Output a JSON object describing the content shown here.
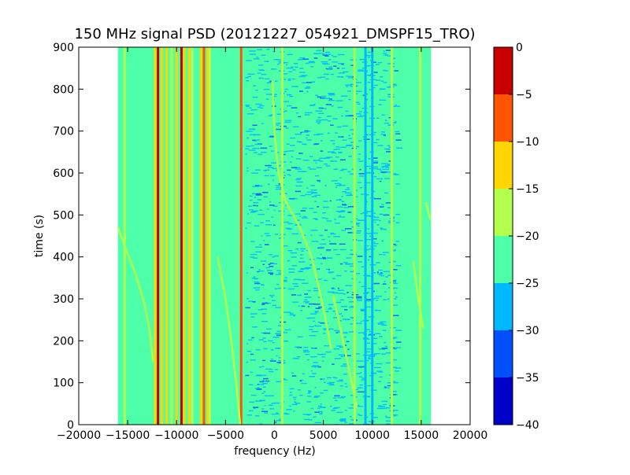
{
  "chart_data": {
    "type": "heatmap",
    "title": "150 MHz signal PSD (20121227_054921_DMSPF15_TRO)",
    "xlabel": "frequency (Hz)",
    "ylabel": "time (s)",
    "xlim": [
      -20000,
      20000
    ],
    "ylim": [
      0,
      900
    ],
    "data_extent_x": [
      -16000,
      16000
    ],
    "xticks": [
      -20000,
      -15000,
      -10000,
      -5000,
      0,
      5000,
      10000,
      15000,
      20000
    ],
    "xtick_labels": [
      "−20000",
      "−15000",
      "−10000",
      "−5000",
      "0",
      "5000",
      "10000",
      "15000",
      "20000"
    ],
    "yticks": [
      0,
      100,
      200,
      300,
      400,
      500,
      600,
      700,
      800,
      900
    ],
    "ytick_labels": [
      "0",
      "100",
      "200",
      "300",
      "400",
      "500",
      "600",
      "700",
      "800",
      "900"
    ],
    "colorbar": {
      "range": [
        -40,
        0
      ],
      "ticks": [
        0,
        -5,
        -10,
        -15,
        -20,
        -25,
        -30,
        -35,
        -40
      ],
      "tick_labels": [
        "0",
        "−5",
        "−10",
        "−15",
        "−20",
        "−25",
        "−30",
        "−35",
        "−40"
      ],
      "levels": [
        {
          "min": -40,
          "max": -35,
          "color": "#0000c8"
        },
        {
          "min": -35,
          "max": -30,
          "color": "#0050ff"
        },
        {
          "min": -30,
          "max": -25,
          "color": "#00b8ff"
        },
        {
          "min": -25,
          "max": -20,
          "color": "#4dffa8"
        },
        {
          "min": -20,
          "max": -15,
          "color": "#b2ff4d"
        },
        {
          "min": -15,
          "max": -10,
          "color": "#ffd500"
        },
        {
          "min": -10,
          "max": -5,
          "color": "#ff5500"
        },
        {
          "min": -5,
          "max": 0,
          "color": "#c80000"
        }
      ]
    },
    "background_level": -22,
    "vertical_lines": [
      {
        "x": -15300,
        "level": -17
      },
      {
        "x": -12200,
        "level": -12
      },
      {
        "x": -11900,
        "level": -2
      },
      {
        "x": -11500,
        "level": -12
      },
      {
        "x": -11000,
        "level": -12
      },
      {
        "x": -10500,
        "level": -17
      },
      {
        "x": -10000,
        "level": -12
      },
      {
        "x": -9500,
        "level": -2
      },
      {
        "x": -9200,
        "level": -12
      },
      {
        "x": -8700,
        "level": -12
      },
      {
        "x": -8400,
        "level": -17
      },
      {
        "x": -7500,
        "level": -12
      },
      {
        "x": -7200,
        "level": -7
      },
      {
        "x": -6800,
        "level": -12
      },
      {
        "x": -6600,
        "level": -17
      },
      {
        "x": -3400,
        "level": -7
      },
      {
        "x": 800,
        "level": -17
      },
      {
        "x": 8200,
        "level": -17
      },
      {
        "x": 9300,
        "level": -27
      },
      {
        "x": 10000,
        "level": -27
      },
      {
        "x": 12000,
        "level": -17
      },
      {
        "x": 14900,
        "level": -17
      }
    ],
    "tracks": [
      {
        "level": -17,
        "points": [
          [
            -16000,
            470
          ],
          [
            -15200,
            420
          ],
          [
            -14200,
            360
          ],
          [
            -13300,
            290
          ],
          [
            -12800,
            230
          ],
          [
            -12400,
            150
          ]
        ]
      },
      {
        "level": -17,
        "points": [
          [
            -5800,
            400
          ],
          [
            -5000,
            300
          ],
          [
            -4400,
            200
          ],
          [
            -3900,
            100
          ],
          [
            -3500,
            0
          ]
        ]
      },
      {
        "level": -17,
        "points": [
          [
            -200,
            820
          ],
          [
            0,
            700
          ],
          [
            400,
            600
          ],
          [
            1200,
            530
          ],
          [
            2600,
            470
          ],
          [
            3800,
            400
          ],
          [
            4800,
            300
          ],
          [
            5400,
            230
          ],
          [
            5800,
            180
          ]
        ]
      },
      {
        "level": -17,
        "points": [
          [
            6000,
            310
          ],
          [
            7000,
            200
          ],
          [
            7900,
            100
          ],
          [
            8400,
            40
          ]
        ]
      },
      {
        "level": -17,
        "points": [
          [
            14200,
            390
          ],
          [
            14700,
            300
          ],
          [
            15200,
            230
          ]
        ]
      },
      {
        "level": -17,
        "points": [
          [
            15500,
            530
          ],
          [
            15900,
            490
          ]
        ]
      }
    ]
  }
}
